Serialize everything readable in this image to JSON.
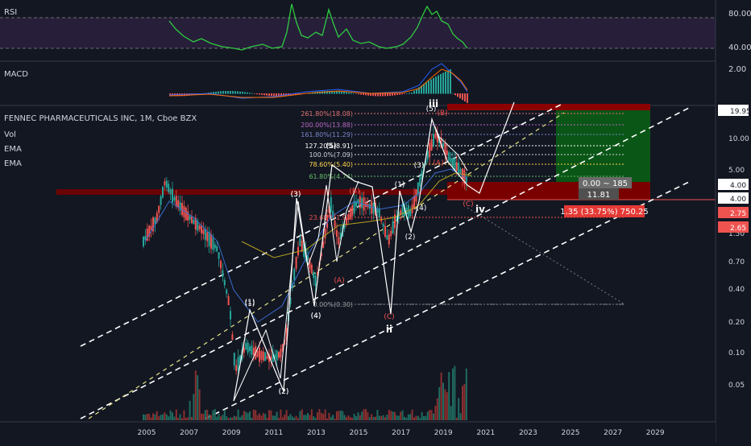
{
  "chart_data": {
    "type": "candlestick",
    "title": "FENNEC PHARMACEUTICALS INC, 1M, Cboe BZX",
    "indicators": [
      "Vol",
      "EMA",
      "EMA"
    ],
    "panes": {
      "rsi": {
        "label": "RSI",
        "ticks": [
          "80.00",
          "40.00"
        ]
      },
      "macd": {
        "label": "MACD",
        "ticks": [
          "2.00"
        ]
      }
    },
    "y_axis": {
      "scale": "log",
      "ticks": [
        "10.00",
        "5.00",
        "1.50",
        "0.70",
        "0.40",
        "0.20",
        "0.10",
        "0.05"
      ]
    },
    "x_axis": {
      "ticks": [
        "2005",
        "2007",
        "2009",
        "2011",
        "2013",
        "2015",
        "2017",
        "2019",
        "2021",
        "2023",
        "2025",
        "2027",
        "2029"
      ]
    },
    "price_badges": [
      {
        "text": "19.95",
        "color": "#ffffff"
      },
      {
        "text": "4.00",
        "color": "#ffffff"
      },
      {
        "text": "4.00",
        "color": "#ffffff"
      },
      {
        "text": "2.75",
        "color": "#ef5350"
      },
      {
        "text": "2.65",
        "color": "#ef5350"
      }
    ],
    "fib_levels": [
      "261.80%(18.08)",
      "200.00%(13.88)",
      "161.80%(11.29)",
      "127.20%(8.91)",
      "100.0%(7.09)",
      "78.60%(5.40)",
      "61.80%(4.74)",
      "23.60%(1.91)",
      "0.00%(0.30)"
    ],
    "wave_labels": {
      "white": [
        "(1)",
        "(2)",
        "(3)",
        "(4)",
        "(5)",
        "(1)",
        "(2)",
        "(3)",
        "(4)",
        "(5)",
        "(1)",
        "(2)",
        "(3)",
        "(4)",
        "(5)",
        "ii",
        "iii",
        "iv"
      ],
      "red": [
        "(A)",
        "(B)",
        "(C)",
        "(A)",
        "(B)",
        "(C)"
      ]
    },
    "position_tool": {
      "box1": "0.00 ~ 185",
      "box2": "11.81",
      "box3": "1.35 (33.75%) 750.25"
    }
  }
}
